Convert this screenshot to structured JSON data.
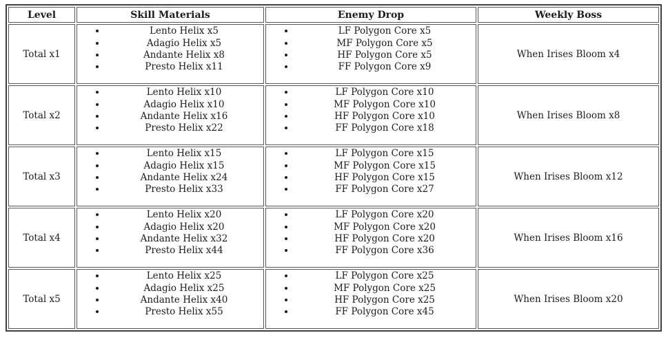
{
  "table": {
    "headers": [
      "Level",
      "Skill Materials",
      "Enemy Drop",
      "Weekly Boss"
    ],
    "rows": [
      {
        "level": "Total x1",
        "skill_materials": [
          "Lento Helix x5",
          "Adagio Helix x5",
          "Andante Helix x8",
          "Presto Helix x11"
        ],
        "enemy_drop": [
          "LF Polygon Core x5",
          "MF Polygon Core x5",
          "HF Polygon Core x5",
          "FF Polygon Core x9"
        ],
        "weekly_boss": "When Irises Bloom x4"
      },
      {
        "level": "Total x2",
        "skill_materials": [
          "Lento Helix x10",
          "Adagio Helix x10",
          "Andante Helix x16",
          "Presto Helix x22"
        ],
        "enemy_drop": [
          "LF Polygon Core x10",
          "MF Polygon Core x10",
          "HF Polygon Core x10",
          "FF Polygon Core x18"
        ],
        "weekly_boss": "When Irises Bloom x8"
      },
      {
        "level": "Total x3",
        "skill_materials": [
          "Lento Helix x15",
          "Adagio Helix x15",
          "Andante Helix x24",
          "Presto Helix x33"
        ],
        "enemy_drop": [
          "LF Polygon Core x15",
          "MF Polygon Core x15",
          "HF Polygon Core x15",
          "FF Polygon Core x27"
        ],
        "weekly_boss": "When Irises Bloom x12"
      },
      {
        "level": "Total x4",
        "skill_materials": [
          "Lento Helix x20",
          "Adagio Helix x20",
          "Andante Helix x32",
          "Presto Helix x44"
        ],
        "enemy_drop": [
          "LF Polygon Core x20",
          "MF Polygon Core x20",
          "HF Polygon Core x20",
          "FF Polygon Core x36"
        ],
        "weekly_boss": "When Irises Bloom x16"
      },
      {
        "level": "Total x5",
        "skill_materials": [
          "Lento Helix x25",
          "Adagio Helix x25",
          "Andante Helix x40",
          "Presto Helix x55"
        ],
        "enemy_drop": [
          "LF Polygon Core x25",
          "MF Polygon Core x25",
          "HF Polygon Core x25",
          "FF Polygon Core x45"
        ],
        "weekly_boss": "When Irises Bloom x20"
      }
    ],
    "colors": {
      "outer_border": "#3d3d3d",
      "cell_border": "#565656",
      "text": "#1b1b1b",
      "background": "#ffffff"
    }
  }
}
